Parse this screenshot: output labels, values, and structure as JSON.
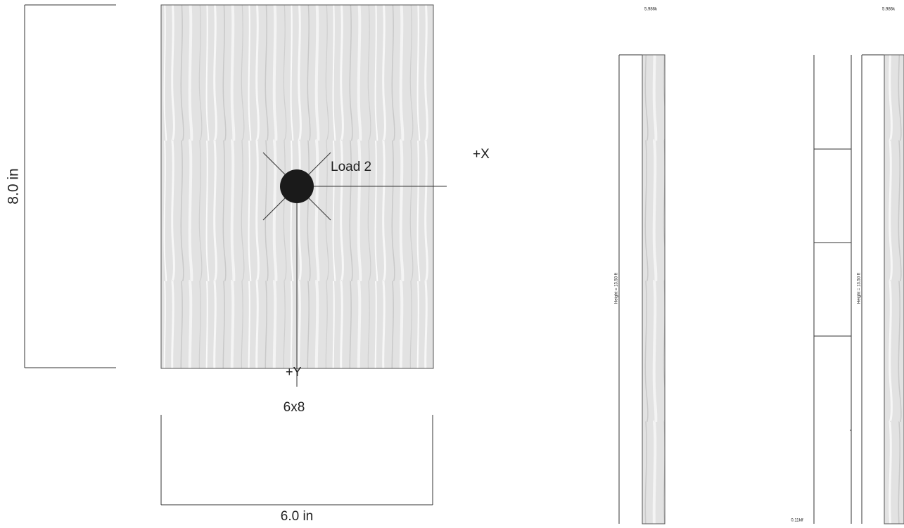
{
  "section": {
    "height_dimension": "8.0 in",
    "width_dimension": "6.0 in",
    "load_label": "Load 2",
    "axis_x": "+X",
    "axis_y": "+Y",
    "size_label": "6x8"
  },
  "elevations": [
    {
      "load_label": "5.986k",
      "height_label": "Height = 13.50 ft"
    },
    {
      "load_label": "5.986k",
      "height_label": "Height = 13.50 ft",
      "line_load_label": "0.11klf"
    }
  ]
}
